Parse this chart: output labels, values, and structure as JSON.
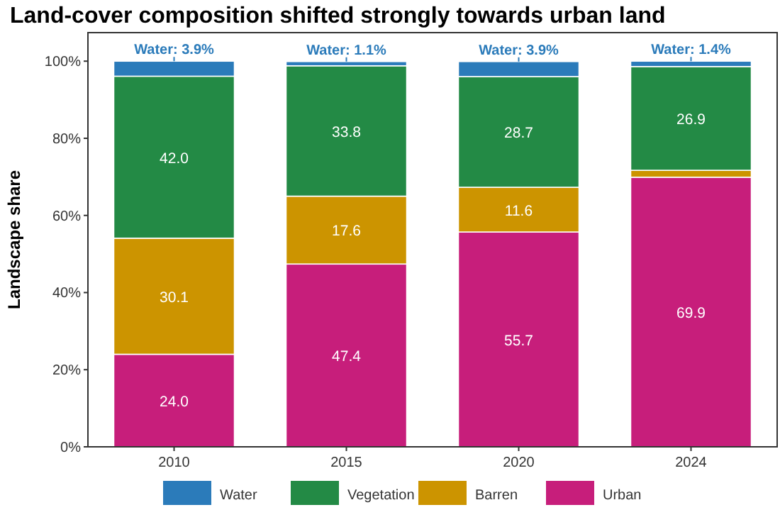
{
  "chart_data": {
    "type": "bar",
    "title": "Land-cover composition shifted strongly towards urban land",
    "ylabel": "Landscape share",
    "categories": [
      "2010",
      "2015",
      "2020",
      "2024"
    ],
    "stacked": true,
    "series": [
      {
        "name": "Urban",
        "color": "#c71e7b",
        "values": [
          24.0,
          47.4,
          55.7,
          69.9
        ],
        "value_labels": [
          "24.0",
          "47.4",
          "55.7",
          "69.9"
        ]
      },
      {
        "name": "Barren",
        "color": "#cc9400",
        "values": [
          30.1,
          17.6,
          11.6,
          1.8
        ],
        "value_labels": [
          "30.1",
          "17.6",
          "11.6",
          null
        ]
      },
      {
        "name": "Vegetation",
        "color": "#238a45",
        "values": [
          42.0,
          33.8,
          28.7,
          26.9
        ],
        "value_labels": [
          "42.0",
          "33.8",
          "28.7",
          "26.9"
        ]
      },
      {
        "name": "Water",
        "color": "#2b7bba",
        "values": [
          3.9,
          1.1,
          3.9,
          1.4
        ],
        "value_labels": [
          "Water: 3.9%",
          "Water: 1.1%",
          "Water: 3.9%",
          "Water: 1.4%"
        ]
      }
    ],
    "ylim": [
      0,
      107.4
    ],
    "yticks": [
      {
        "value": 0,
        "label": "0%"
      },
      {
        "value": 20,
        "label": "20%"
      },
      {
        "value": 40,
        "label": "40%"
      },
      {
        "value": 60,
        "label": "60%"
      },
      {
        "value": 80,
        "label": "80%"
      },
      {
        "value": 100,
        "label": "100%"
      }
    ],
    "grid": false,
    "legend": "bottom"
  }
}
